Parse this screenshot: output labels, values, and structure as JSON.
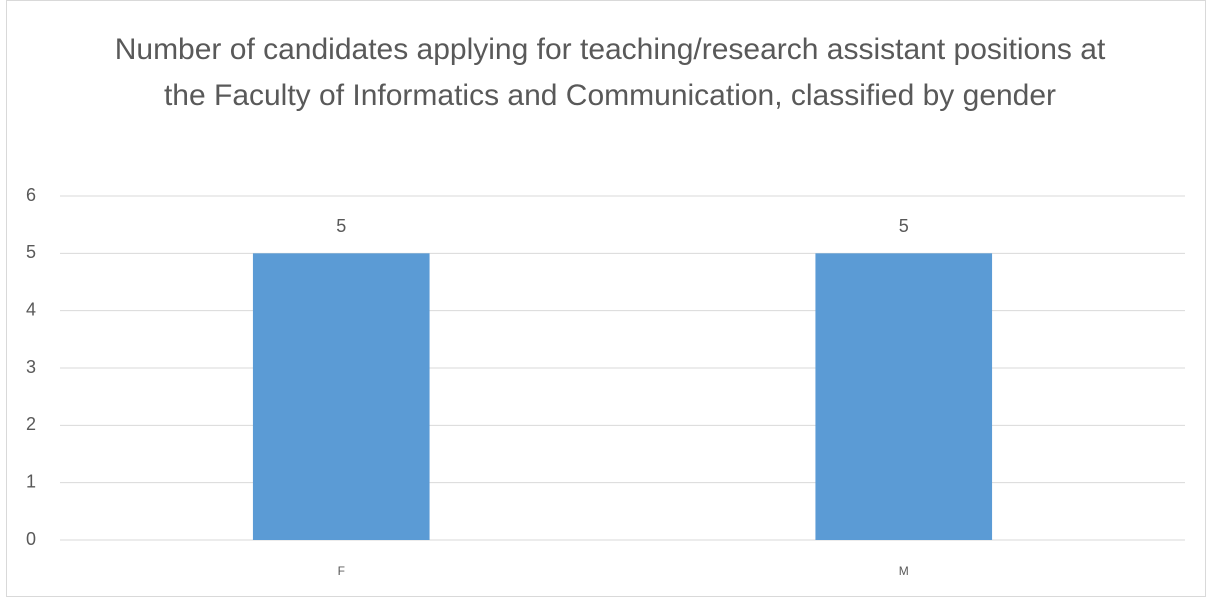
{
  "chart_data": {
    "type": "bar",
    "title": "Number of candidates applying for teaching/research assistant positions at the Faculty of Informatics and Communication, classified by gender",
    "categories": [
      "F",
      "M"
    ],
    "values": [
      5,
      5
    ],
    "color": "#5b9bd5",
    "ylim": [
      0,
      6
    ],
    "yticks": [
      0,
      1,
      2,
      3,
      4,
      5,
      6
    ],
    "grid": true
  }
}
